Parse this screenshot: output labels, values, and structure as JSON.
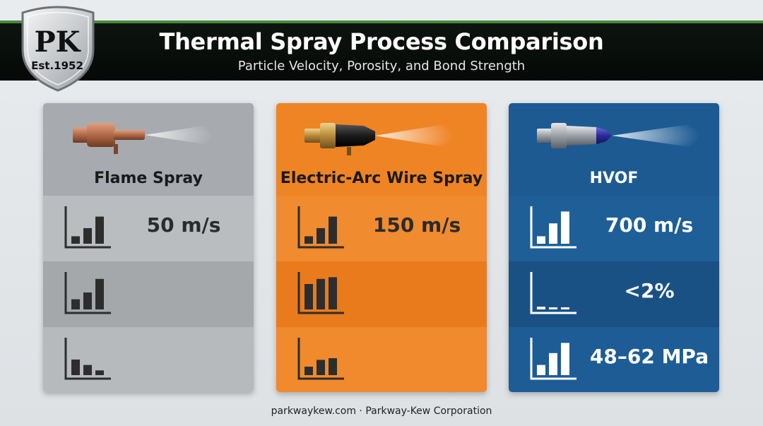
{
  "header": {
    "title": "Thermal Spray Process Comparison",
    "subtitle": "Particle Velocity, Porosity, and Bond Strength"
  },
  "logo": {
    "main": "PK",
    "sub": "Est.1952"
  },
  "cards": [
    {
      "name": "Flame Spray",
      "color": "#a9adb0",
      "rows": [
        {
          "icon": "bar-chart-icon",
          "levels": [
            0.22,
            0.46,
            0.8
          ],
          "value": "50 m/s"
        },
        {
          "icon": "bar-chart-icon",
          "levels": [
            0.3,
            0.5,
            0.9
          ],
          "value": ""
        },
        {
          "icon": "bar-chart-icon",
          "levels": [
            0.46,
            0.3,
            0.14
          ],
          "value": ""
        }
      ]
    },
    {
      "name": "Electric-Arc Wire Spray",
      "color": "#f08a2c",
      "rows": [
        {
          "icon": "bar-chart-icon",
          "levels": [
            0.22,
            0.46,
            0.8
          ],
          "value": "150 m/s"
        },
        {
          "icon": "bar-chart-icon",
          "levels": [
            0.75,
            0.9,
            0.95
          ],
          "value": ""
        },
        {
          "icon": "bar-chart-icon",
          "levels": [
            0.25,
            0.45,
            0.5
          ],
          "value": ""
        }
      ]
    },
    {
      "name": "HVOF",
      "color": "#1f5c94",
      "rows": [
        {
          "icon": "bar-chart-icon",
          "levels": [
            0.22,
            0.6,
            0.95
          ],
          "value": "700 m/s"
        },
        {
          "icon": "bar-chart-icon",
          "levels": [
            0.08,
            0.03,
            0.03
          ],
          "value": "<2%"
        },
        {
          "icon": "bar-chart-icon",
          "levels": [
            0.3,
            0.65,
            0.95
          ],
          "value": "48–62 MPa"
        }
      ]
    }
  ],
  "footer": {
    "text": "parkwaykew.com · Parkway-Kew Corporation"
  }
}
